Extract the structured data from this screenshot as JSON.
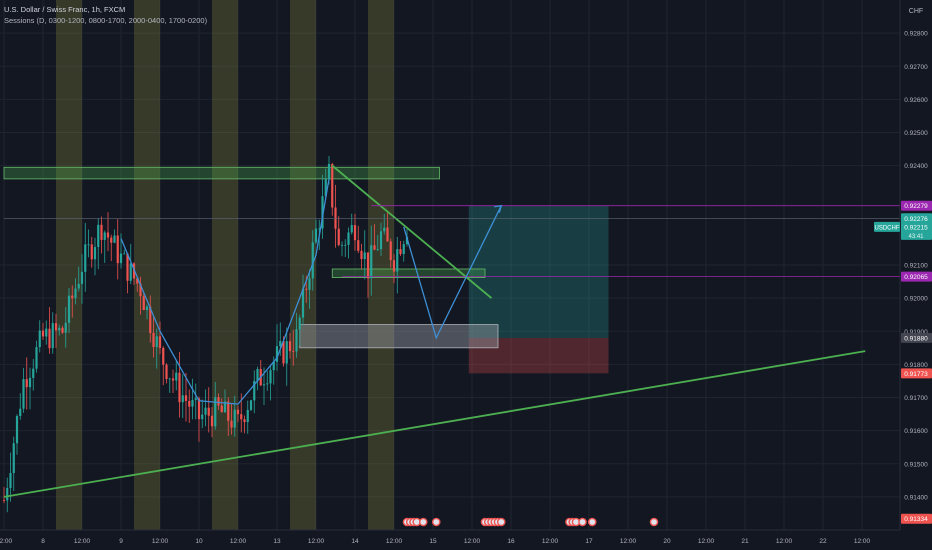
{
  "header": {
    "title": "U.S. Dollar / Swiss Franc, 1h, FXCM",
    "sessions": "Sessions (D, 0300-1200, 0800-1700, 2000-0400, 1700-0200)"
  },
  "chart_data": {
    "type": "candlestick",
    "currency": "CHF",
    "symbol": "USDCHF",
    "last_price": "0.92215",
    "countdown": "43:41",
    "ylim": [
      0.913,
      0.929
    ],
    "y_ticks": [
      "0.92800",
      "0.92700",
      "0.92600",
      "0.92500",
      "0.92400",
      "0.92100",
      "0.92000",
      "0.91900",
      "0.91800",
      "0.91700",
      "0.91600",
      "0.91500",
      "0.91400"
    ],
    "x_ticks": [
      {
        "i": 0,
        "label": "12:00"
      },
      {
        "i": 12,
        "label": "8"
      },
      {
        "i": 24,
        "label": "12:00"
      },
      {
        "i": 36,
        "label": "9"
      },
      {
        "i": 48,
        "label": "12:00"
      },
      {
        "i": 60,
        "label": "10"
      },
      {
        "i": 72,
        "label": "12:00"
      },
      {
        "i": 84,
        "label": "13"
      },
      {
        "i": 96,
        "label": "12:00"
      },
      {
        "i": 108,
        "label": "14"
      },
      {
        "i": 120,
        "label": "12:00"
      },
      {
        "i": 132,
        "label": "15"
      },
      {
        "i": 144,
        "label": "12:00"
      },
      {
        "i": 156,
        "label": "16"
      },
      {
        "i": 168,
        "label": "12:00"
      },
      {
        "i": 180,
        "label": "17"
      },
      {
        "i": 192,
        "label": "12:00"
      },
      {
        "i": 204,
        "label": "20"
      },
      {
        "i": 216,
        "label": "12:00"
      },
      {
        "i": 228,
        "label": "21"
      },
      {
        "i": 240,
        "label": "12:00"
      },
      {
        "i": 252,
        "label": "22"
      },
      {
        "i": 264,
        "label": "12:00"
      }
    ],
    "price_labels": [
      {
        "value": "0.92279",
        "price": 0.92279,
        "color": "#9c27b0"
      },
      {
        "value": "0.92276",
        "price": 0.92241,
        "color": "#26a69a"
      },
      {
        "value": "0.92065",
        "price": 0.92065,
        "color": "#9c27b0"
      },
      {
        "value": "0.91880",
        "price": 0.9188,
        "color": "#434651"
      },
      {
        "value": "0.91773",
        "price": 0.91773,
        "color": "#ef5350"
      },
      {
        "value": "0.91334",
        "price": 0.91334,
        "color": "#ef5350"
      }
    ],
    "trend_shape": [
      [
        0,
        0.9139
      ],
      [
        6,
        0.9175
      ],
      [
        12,
        0.9188
      ],
      [
        18,
        0.919
      ],
      [
        24,
        0.921
      ],
      [
        30,
        0.9222
      ],
      [
        36,
        0.9212
      ],
      [
        42,
        0.9203
      ],
      [
        48,
        0.9183
      ],
      [
        54,
        0.9172
      ],
      [
        60,
        0.9164
      ],
      [
        66,
        0.9166
      ],
      [
        72,
        0.9162
      ],
      [
        78,
        0.9175
      ],
      [
        84,
        0.9182
      ],
      [
        90,
        0.9188
      ],
      [
        96,
        0.922
      ],
      [
        100,
        0.9237
      ],
      [
        103,
        0.9215
      ],
      [
        108,
        0.9222
      ],
      [
        112,
        0.9209
      ],
      [
        116,
        0.9219
      ],
      [
        120,
        0.9212
      ],
      [
        124,
        0.9222
      ]
    ],
    "sessions_x": [
      [
        16,
        24
      ],
      [
        40,
        48
      ],
      [
        64,
        72
      ],
      [
        88,
        96
      ],
      [
        112,
        120
      ]
    ],
    "zones": [
      {
        "from_i": 0,
        "to_i": 134,
        "top": 0.92395,
        "bottom": 0.9236,
        "kind": "resistance"
      },
      {
        "from_i": 101,
        "to_i": 148,
        "top": 0.92088,
        "bottom": 0.92062,
        "kind": "support"
      },
      {
        "from_i": 91,
        "to_i": 152,
        "top": 0.9192,
        "bottom": 0.9185,
        "kind": "demand"
      }
    ],
    "position": {
      "from_i": 143,
      "to_i": 186,
      "entry": 0.9188,
      "target": 0.92279,
      "stop": 0.91773
    },
    "lines": [
      {
        "from": [
          0,
          0.914
        ],
        "to": [
          265,
          0.9184
        ],
        "color": "#4caf50",
        "width": 1.8
      },
      {
        "from": [
          101,
          0.924
        ],
        "to": [
          150,
          0.92
        ],
        "color": "#4caf50",
        "width": 1.8
      },
      {
        "from": [
          113,
          0.92279
        ],
        "to": [
          280,
          0.92279
        ],
        "color": "#9c27b0",
        "width": 0.8
      },
      {
        "from": [
          104,
          0.92065
        ],
        "to": [
          280,
          0.92065
        ],
        "color": "#9c27b0",
        "width": 0.8
      },
      {
        "from": [
          0,
          0.92241
        ],
        "to": [
          280,
          0.92241
        ],
        "color": "#5d6577",
        "width": 0.6
      }
    ],
    "projection": [
      [
        123,
        0.92215
      ],
      [
        133,
        0.9188
      ],
      [
        153,
        0.92279
      ]
    ],
    "events": [
      124,
      125,
      126,
      127,
      129,
      133,
      148,
      149,
      150,
      151,
      152,
      153,
      174,
      175,
      176,
      178,
      181,
      200
    ]
  }
}
